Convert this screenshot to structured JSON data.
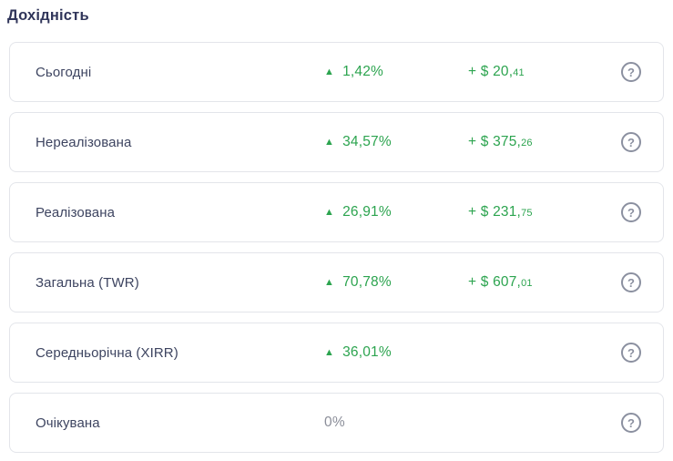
{
  "title": "Дохідність",
  "colors": {
    "gain_green": "#2ca44f",
    "neutral_gray": "#8b8e99",
    "label_text": "#3d4460",
    "title_text": "#30355a",
    "card_border": "#e3e5ea",
    "help_icon": "#8b90a0"
  },
  "icons": {
    "trend_up": "▲",
    "help": "?"
  },
  "rows": [
    {
      "label": "Сьогодні",
      "percent": "1,42%",
      "trend": "up",
      "amount_main": "+ $ 20,",
      "amount_cents": "41"
    },
    {
      "label": "Нереалізована",
      "percent": "34,57%",
      "trend": "up",
      "amount_main": "+ $ 375,",
      "amount_cents": "26"
    },
    {
      "label": "Реалізована",
      "percent": "26,91%",
      "trend": "up",
      "amount_main": "+ $ 231,",
      "amount_cents": "75"
    },
    {
      "label": "Загальна (TWR)",
      "percent": "70,78%",
      "trend": "up",
      "amount_main": "+ $ 607,",
      "amount_cents": "01"
    },
    {
      "label": "Середньорічна (XIRR)",
      "percent": "36,01%",
      "trend": "up",
      "amount_main": "",
      "amount_cents": ""
    },
    {
      "label": "Очікувана",
      "percent": "0%",
      "trend": "none",
      "amount_main": "",
      "amount_cents": ""
    }
  ]
}
